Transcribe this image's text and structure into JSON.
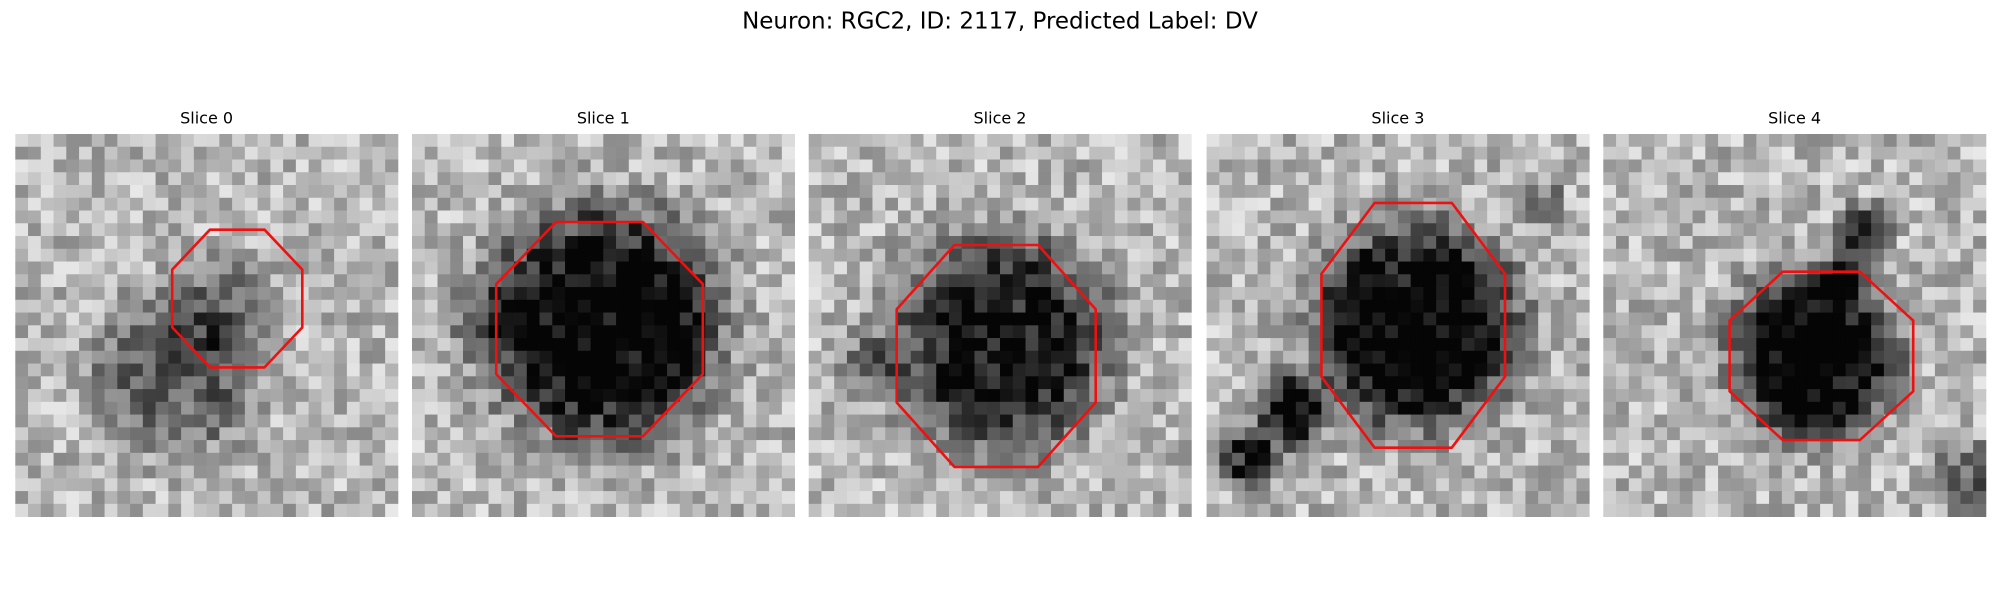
{
  "title": "Neuron: RGC2, ID: 2117, Predicted Label: DV",
  "panels": [
    {
      "title": "Slice 0"
    },
    {
      "title": "Slice 1"
    },
    {
      "title": "Slice 2"
    },
    {
      "title": "Slice 3"
    },
    {
      "title": "Slice 4"
    }
  ]
}
